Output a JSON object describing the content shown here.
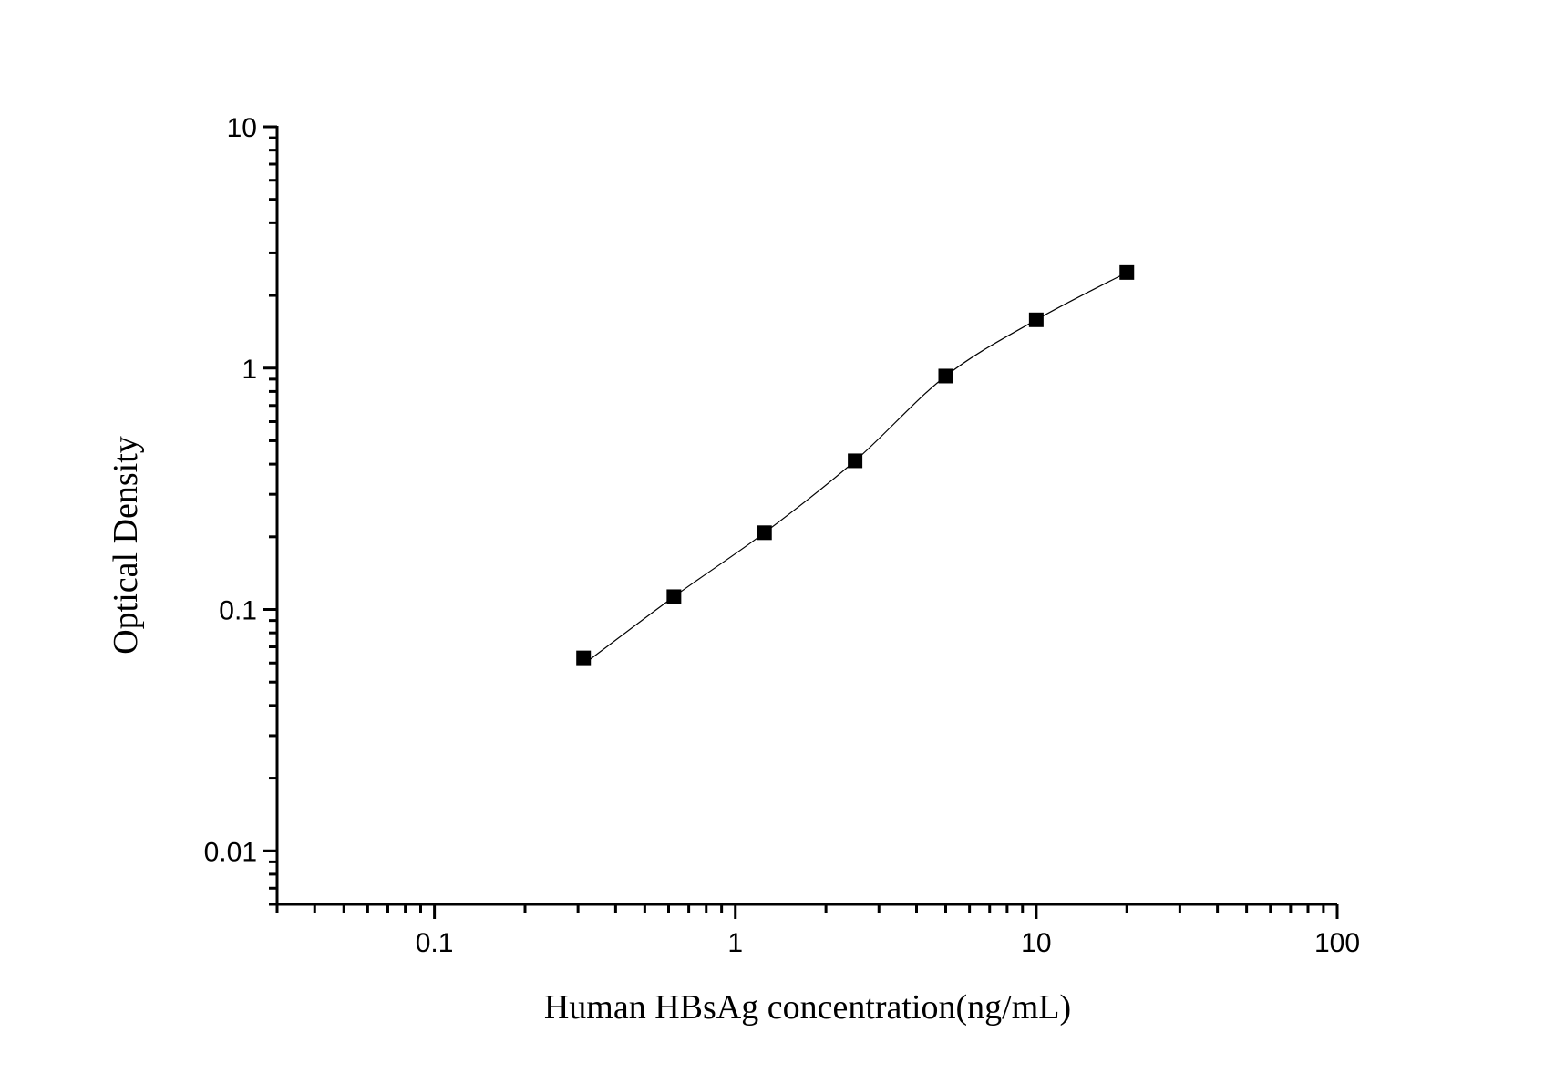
{
  "chart_data": {
    "type": "scatter",
    "title": "",
    "xlabel": "Human HBsAg concentration(ng/mL)",
    "ylabel": "Optical Density",
    "x_scale": "log",
    "y_scale": "log",
    "xlim": [
      0.03,
      100
    ],
    "ylim": [
      0.006,
      10
    ],
    "x_ticks": [
      {
        "value": 0.1,
        "label": "0.1"
      },
      {
        "value": 1,
        "label": "1"
      },
      {
        "value": 10,
        "label": "10"
      },
      {
        "value": 100,
        "label": "100"
      }
    ],
    "y_ticks": [
      {
        "value": 0.01,
        "label": "0.01"
      },
      {
        "value": 0.1,
        "label": "0.1"
      },
      {
        "value": 1,
        "label": "1"
      },
      {
        "value": 10,
        "label": "10"
      }
    ],
    "grid": false,
    "legend": "none",
    "series": [
      {
        "marker": "square",
        "color": "#000000",
        "fit_line": true,
        "x": [
          0.313,
          0.625,
          1.25,
          2.5,
          5,
          10,
          20
        ],
        "y": [
          0.063,
          0.113,
          0.208,
          0.413,
          0.927,
          1.585,
          2.49
        ]
      }
    ]
  }
}
